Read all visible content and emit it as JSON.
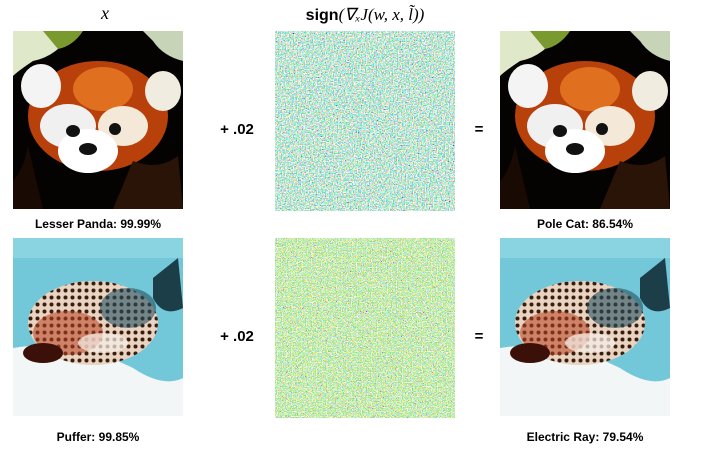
{
  "header": {
    "input_label": "x",
    "perturbation_function": "sign",
    "perturbation_argument": "(∇ₓJ(w, x, l̃))"
  },
  "rows": [
    {
      "original_label": "Lesser Panda: 99.99%",
      "operator": "+ .02",
      "equals": "=",
      "adversarial_label": "Pole Cat: 86.54%"
    },
    {
      "original_label": "Puffer: 99.85%",
      "operator": "+ .02",
      "equals": "=",
      "adversarial_label": "Electric Ray: 79.54%"
    }
  ]
}
